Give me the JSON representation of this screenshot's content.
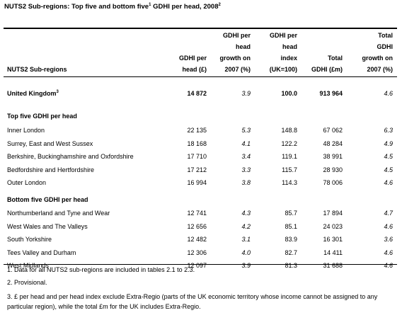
{
  "title": {
    "text": "NUTS2 Sub-regions: Top five and bottom five",
    "sup1": "1",
    "mid": " GDHI per head, 2008",
    "sup2": "2"
  },
  "headers": {
    "region": "NUTS2 Sub-regions",
    "gdhi_per_head": [
      "GDHI per",
      "head (£)"
    ],
    "growth": [
      "GDHI per",
      "head",
      "growth on",
      "2007 (%)"
    ],
    "index": [
      "GDHI per",
      "head",
      "index",
      "(UK=100)"
    ],
    "total": [
      "Total",
      "GDHI (£m)"
    ],
    "total_growth": [
      "Total",
      "GDHI",
      "growth on",
      "2007 (%)"
    ]
  },
  "uk": {
    "name": "United Kingdom",
    "sup": "3",
    "gdhi": "14 872",
    "growth": "3.9",
    "index": "100.0",
    "total": "913 964",
    "total_growth": "4.6"
  },
  "top_section": "Top five GDHI per head",
  "top_rows": [
    {
      "name": "Inner London",
      "gdhi": "22 135",
      "growth": "5.3",
      "index": "148.8",
      "total": "67 062",
      "total_growth": "6.3"
    },
    {
      "name": "Surrey, East and West Sussex",
      "gdhi": "18 168",
      "growth": "4.1",
      "index": "122.2",
      "total": "48 284",
      "total_growth": "4.9"
    },
    {
      "name": "Berkshire, Buckinghamshire and Oxfordshire",
      "gdhi": "17 710",
      "growth": "3.4",
      "index": "119.1",
      "total": "38 991",
      "total_growth": "4.5"
    },
    {
      "name": "Bedfordshire and Hertfordshire",
      "gdhi": "17 212",
      "growth": "3.3",
      "index": "115.7",
      "total": "28 930",
      "total_growth": "4.5"
    },
    {
      "name": "Outer London",
      "gdhi": "16 994",
      "growth": "3.8",
      "index": "114.3",
      "total": "78 006",
      "total_growth": "4.6"
    }
  ],
  "bottom_section": "Bottom five GDHI per head",
  "bottom_rows": [
    {
      "name": "Northumberland and Tyne and Wear",
      "gdhi": "12 741",
      "growth": "4.3",
      "index": "85.7",
      "total": "17 894",
      "total_growth": "4.7"
    },
    {
      "name": "West Wales and The Valleys",
      "gdhi": "12 656",
      "growth": "4.2",
      "index": "85.1",
      "total": "24 023",
      "total_growth": "4.6"
    },
    {
      "name": "South Yorkshire",
      "gdhi": "12 482",
      "growth": "3.1",
      "index": "83.9",
      "total": "16 301",
      "total_growth": "3.6"
    },
    {
      "name": "Tees Valley and Durham",
      "gdhi": "12 306",
      "growth": "4.0",
      "index": "82.7",
      "total": "14 411",
      "total_growth": "4.6"
    },
    {
      "name": "West Midlands",
      "gdhi": "12 097",
      "growth": "3.9",
      "index": "81.3",
      "total": "31 688",
      "total_growth": "4.6"
    }
  ],
  "footnotes": [
    "1. Data for all NUTS2 sub-regions are included in tables 2.1 to 2.3.",
    "2. Provisional.",
    "3. £ per head and per head index exclude Extra-Regio (parts of the UK economic territory whose income cannot be assigned to any particular region), while the total £m for the UK includes Extra-Regio."
  ]
}
